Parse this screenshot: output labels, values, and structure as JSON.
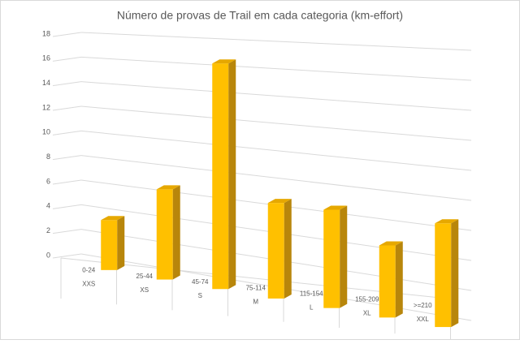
{
  "chart_data": {
    "type": "bar3d",
    "title": "Número de provas de Trail em cada categoria (km-effort)",
    "categories": [
      "0-24",
      "25-44",
      "45-74",
      "75-114",
      "115-154",
      "155-209",
      ">=210"
    ],
    "sub_categories": [
      "XXS",
      "XS",
      "S",
      "M",
      "L",
      "XL",
      "XXL"
    ],
    "values": [
      4,
      7,
      17,
      7,
      7,
      5,
      7
    ],
    "color": "#ffc000",
    "ylim": [
      0,
      18
    ],
    "yticks": [
      0,
      2,
      4,
      6,
      8,
      10,
      12,
      14,
      16,
      18
    ],
    "grid": true
  }
}
